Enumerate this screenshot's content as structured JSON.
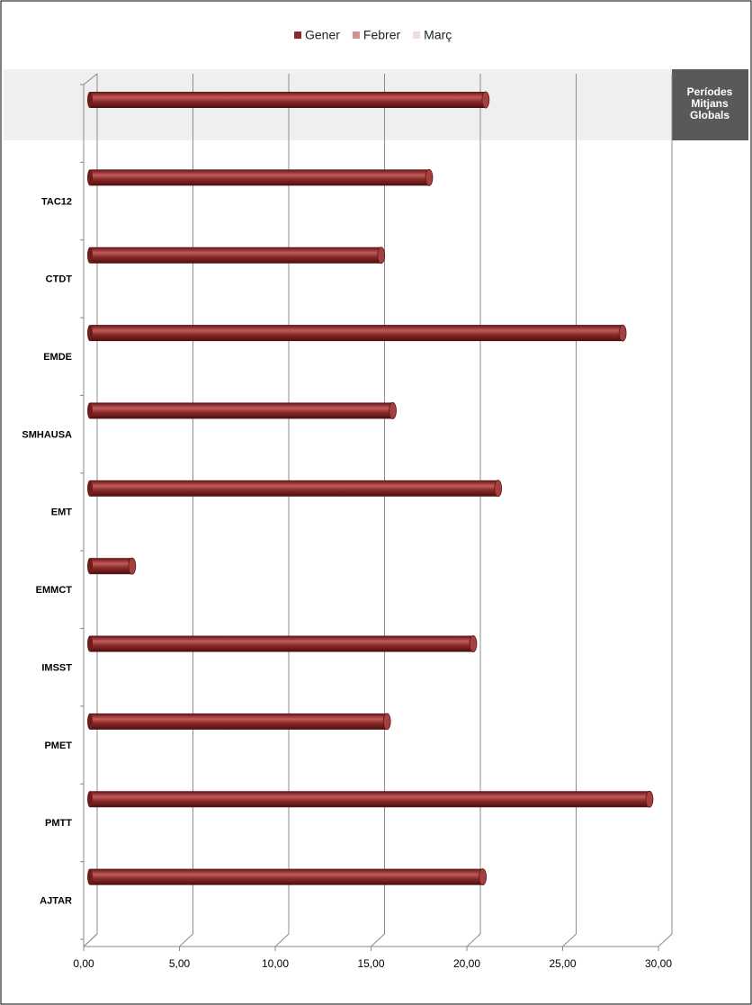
{
  "chart_data": {
    "type": "bar",
    "categories": [
      null,
      "TAC12",
      "CTDT",
      "EMDE",
      "SMHAUSA",
      "EMT",
      "EMMCT",
      "IMSST",
      "PMET",
      "PMTT",
      "AJTAR"
    ],
    "series": [
      {
        "name": "Gener",
        "color": "#8b2a2a",
        "values": [
          20.65,
          17.7,
          15.2,
          27.8,
          15.8,
          21.3,
          2.2,
          20.0,
          15.5,
          29.2,
          20.5
        ]
      },
      {
        "name": "Febrer",
        "color": "#d4908f",
        "values": [
          null,
          null,
          null,
          null,
          null,
          null,
          null,
          null,
          null,
          null,
          null
        ]
      },
      {
        "name": "Març",
        "color": "#f0dcdc",
        "values": [
          null,
          null,
          null,
          null,
          null,
          null,
          null,
          null,
          null,
          null,
          null
        ]
      }
    ],
    "xlim": [
      0,
      30
    ],
    "xticks": [
      {
        "value": 0,
        "label": "0,00"
      },
      {
        "value": 5,
        "label": "5,00"
      },
      {
        "value": 10,
        "label": "10,00"
      },
      {
        "value": 15,
        "label": "15,00"
      },
      {
        "value": 20,
        "label": "20,00"
      },
      {
        "value": 25,
        "label": "25,00"
      },
      {
        "value": 30,
        "label": "30,00"
      }
    ],
    "grid": true,
    "legend": "top",
    "annotation": "Períodes Mitjans Globals"
  }
}
